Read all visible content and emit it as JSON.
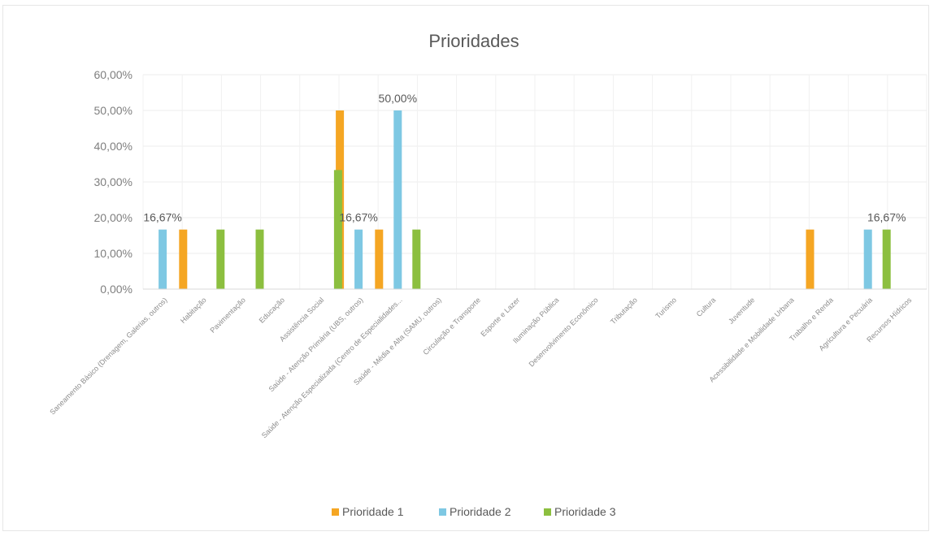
{
  "chart_data": {
    "type": "bar",
    "title": "Prioridades",
    "xlabel": "",
    "ylabel": "",
    "ylim": [
      0,
      60
    ],
    "yticks": [
      "0,00%",
      "10,00%",
      "20,00%",
      "30,00%",
      "40,00%",
      "50,00%",
      "60,00%"
    ],
    "grid": true,
    "legend_position": "bottom",
    "categories": [
      "Saneamento Básico (Drenagem, Galerias, outros)",
      "Habitação",
      "Pavimentação",
      "Educação",
      "Assistência Social",
      "Saúde - Atenção Primária (UBS, outros)",
      "Saúde - Atenção Especializada (Centro de Especialidades...",
      "Saúde - Média e Alta (SAMU, outros)",
      "Circulação e Transporte",
      "Esporte e Lazer",
      "Iluminação Pública",
      "Desenvolvimento Econômico",
      "Tributação",
      "Turismo",
      "Cultura",
      "Juventude",
      "Acessibilidade e Mobilidade Urbana",
      "Trabalho e Renda",
      "Agricultura e Pecuária",
      "Recursos Hídricos"
    ],
    "series": [
      {
        "name": "Prioridade 1",
        "color": "#f5a623",
        "values": [
          0,
          16.67,
          0,
          0,
          0,
          50,
          16.67,
          0,
          0,
          0,
          0,
          0,
          0,
          0,
          0,
          0,
          0,
          16.67,
          0,
          0
        ]
      },
      {
        "name": "Prioridade 2",
        "color": "#7ec8e3",
        "values": [
          16.67,
          0,
          0,
          0,
          0,
          16.67,
          50,
          0,
          0,
          0,
          0,
          0,
          0,
          0,
          0,
          0,
          0,
          0,
          16.67,
          0
        ]
      },
      {
        "name": "Prioridade 3",
        "color": "#8cbf3f",
        "values": [
          0,
          16.67,
          16.67,
          0,
          33.33,
          0,
          16.67,
          0,
          0,
          0,
          0,
          0,
          0,
          0,
          0,
          0,
          0,
          0,
          16.67,
          0
        ]
      }
    ],
    "data_labels": [
      {
        "category": 0,
        "series": 1,
        "text": "16,67%"
      },
      {
        "category": 5,
        "series": 1,
        "text": "16,67%"
      },
      {
        "category": 6,
        "series": 1,
        "text": "50,00%"
      },
      {
        "category": 18,
        "series": 2,
        "text": "16,67%"
      }
    ]
  }
}
